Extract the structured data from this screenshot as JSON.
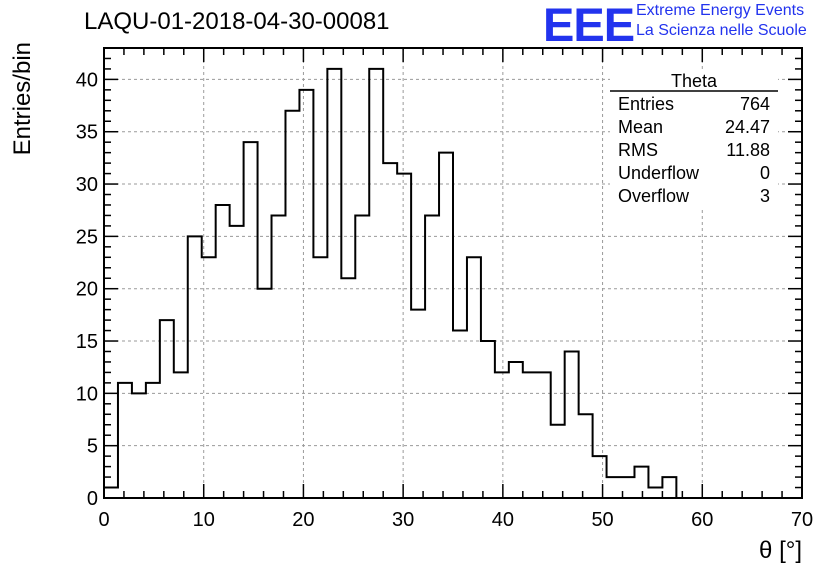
{
  "header": {
    "run_title": "LAQU-01-2018-04-30-00081",
    "logo_text": "EEE",
    "logo_line1": "Extreme Energy Events",
    "logo_line2": "La Scienza nelle Scuole",
    "logo_color": "#2233ee"
  },
  "stats": {
    "title": "Theta",
    "rows": [
      {
        "label": "Entries",
        "value": "764"
      },
      {
        "label": "Mean",
        "value": "24.47"
      },
      {
        "label": "RMS",
        "value": "11.88"
      },
      {
        "label": "Underflow",
        "value": "0"
      },
      {
        "label": "Overflow",
        "value": "3"
      }
    ]
  },
  "chart_data": {
    "type": "histogram",
    "title": "LAQU-01-2018-04-30-00081",
    "xlabel": "θ [°]",
    "ylabel": "Entries/bin",
    "xlim": [
      0,
      70
    ],
    "ylim": [
      0,
      43
    ],
    "grid": true,
    "bin_edges_start": 0,
    "bin_width": 1.4,
    "x_ticks": [
      0,
      10,
      20,
      30,
      40,
      50,
      60,
      70
    ],
    "y_ticks": [
      0,
      5,
      10,
      15,
      20,
      25,
      30,
      35,
      40
    ],
    "values": [
      1,
      11,
      10,
      11,
      17,
      12,
      25,
      23,
      28,
      26,
      34,
      20,
      27,
      37,
      39,
      23,
      41,
      21,
      27,
      41,
      32,
      31,
      18,
      27,
      33,
      16,
      23,
      15,
      12,
      13,
      12,
      12,
      7,
      14,
      8,
      4,
      2,
      2,
      3,
      1,
      2,
      0,
      0,
      0,
      0,
      0,
      0,
      0,
      0,
      0
    ],
    "line_color": "#000000"
  }
}
